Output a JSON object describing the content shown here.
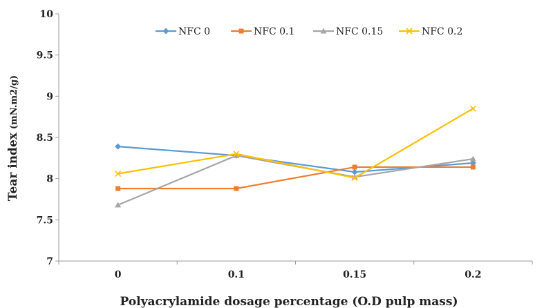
{
  "chart_data": {
    "type": "line",
    "title": "",
    "xlabel": "Polyacrylamide  dosage percentage (O.D pulp mass)",
    "ylabel": "Tear index",
    "ylabel_unit": "(mN.m2/g)",
    "categories": [
      "0",
      "0.1",
      "0.15",
      "0.2"
    ],
    "ylim": [
      7,
      10
    ],
    "yticks": [
      "7",
      "7.5",
      "8",
      "8.5",
      "9",
      "9.5",
      "10"
    ],
    "grid": false,
    "legend_position": "top",
    "series": [
      {
        "name": "NFC 0",
        "values": [
          8.39,
          8.28,
          8.08,
          8.19
        ],
        "color": "#5B9BD5",
        "marker": "diamond"
      },
      {
        "name": "NFC 0.1",
        "values": [
          7.88,
          7.88,
          8.14,
          8.14
        ],
        "color": "#ED7D31",
        "marker": "square"
      },
      {
        "name": "NFC 0.15",
        "values": [
          7.68,
          8.28,
          8.02,
          8.24
        ],
        "color": "#A5A5A5",
        "marker": "triangle"
      },
      {
        "name": "NFC 0.2",
        "values": [
          8.06,
          8.3,
          8.01,
          8.85
        ],
        "color": "#FFC000",
        "marker": "cross"
      }
    ]
  }
}
